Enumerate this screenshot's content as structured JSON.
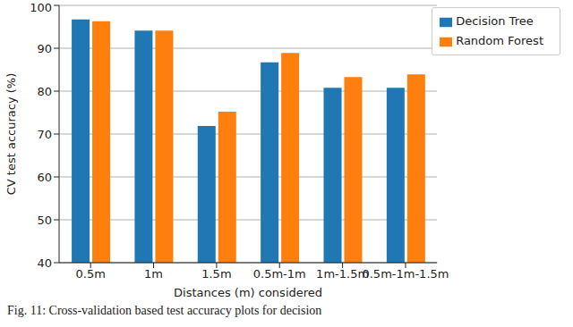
{
  "chart_data": {
    "type": "bar",
    "categories": [
      "0.5m",
      "1m",
      "1.5m",
      "0.5m-1m",
      "1m-1.5m",
      "0.5m-1m-1.5m"
    ],
    "series": [
      {
        "name": "Decision Tree",
        "color": "#1f77b4",
        "values": [
          96.7,
          94.1,
          71.9,
          86.7,
          80.8,
          80.8
        ]
      },
      {
        "name": "Random Forest",
        "color": "#ff7f0e",
        "values": [
          96.3,
          94.1,
          75.2,
          88.9,
          83.3,
          83.9
        ]
      }
    ],
    "x_label": "Distances (m) considered",
    "y_label": "CV test accuracy (%)",
    "ylim": [
      40,
      100
    ],
    "yticks": [
      40,
      50,
      60,
      70,
      80,
      90,
      100
    ],
    "grid": true,
    "legend": "upper right",
    "annotations": [
      "Fig. 11: Cross-validation based test accuracy plots for decision"
    ]
  }
}
